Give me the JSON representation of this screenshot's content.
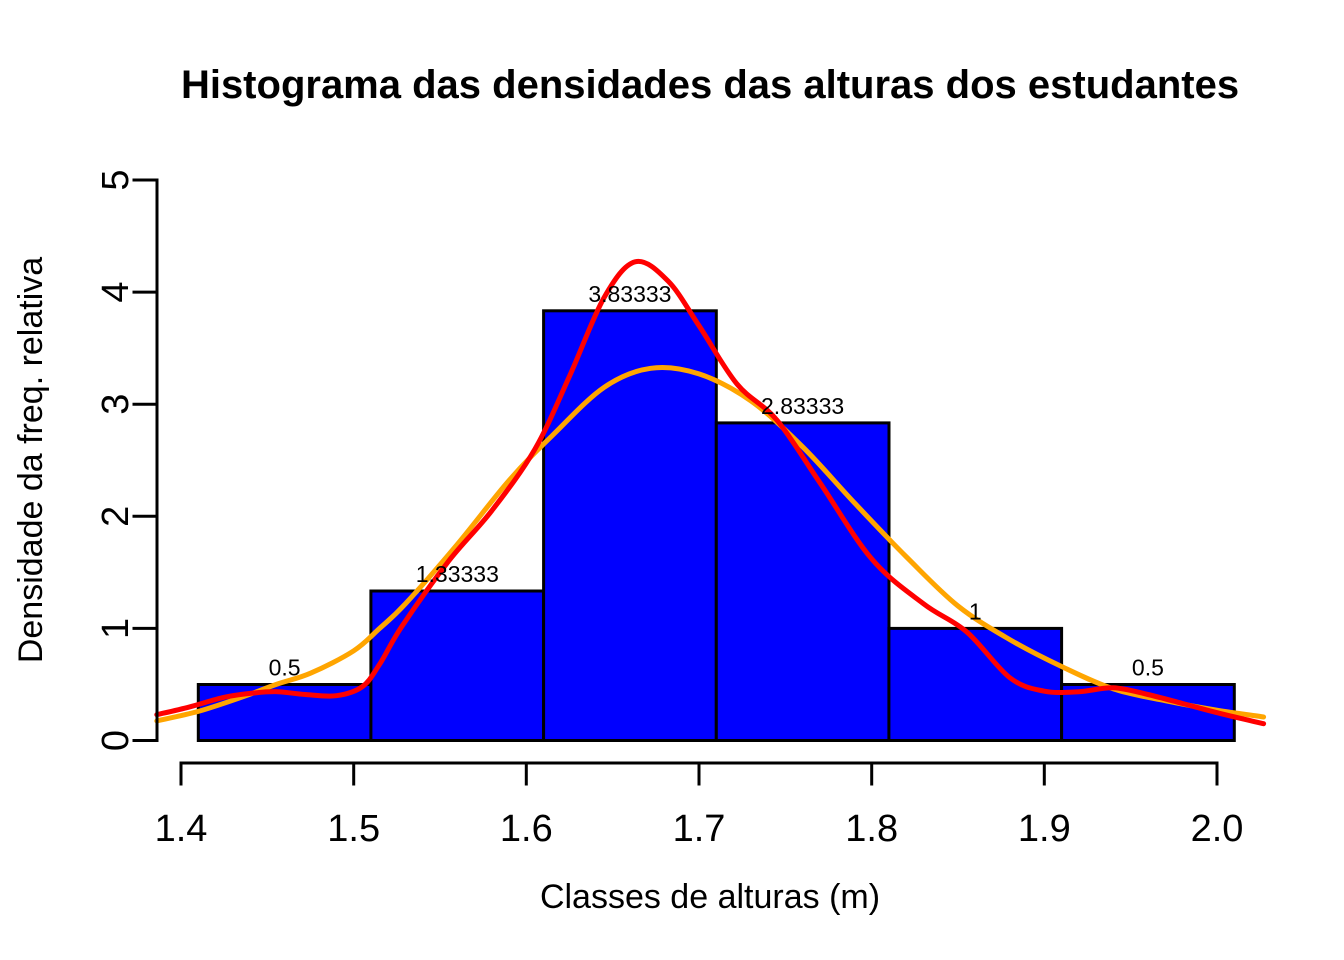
{
  "chart_data": {
    "type": "histogram",
    "title": "Histograma das densidades das alturas dos estudantes",
    "xlabel": "Classes de alturas (m)",
    "ylabel": "Densidade da freq. relativa",
    "xlim": [
      1.386,
      2.034
    ],
    "ylim": [
      0,
      5
    ],
    "grid": false,
    "legend": "none",
    "x_ticks": [
      {
        "value": 1.4,
        "label": "1.4"
      },
      {
        "value": 1.5,
        "label": "1.5"
      },
      {
        "value": 1.6,
        "label": "1.6"
      },
      {
        "value": 1.7,
        "label": "1.7"
      },
      {
        "value": 1.8,
        "label": "1.8"
      },
      {
        "value": 1.9,
        "label": "1.9"
      },
      {
        "value": 2.0,
        "label": "2.0"
      }
    ],
    "y_ticks": [
      {
        "value": 0,
        "label": "0"
      },
      {
        "value": 1,
        "label": "1"
      },
      {
        "value": 2,
        "label": "2"
      },
      {
        "value": 3,
        "label": "3"
      },
      {
        "value": 4,
        "label": "4"
      },
      {
        "value": 5,
        "label": "5"
      }
    ],
    "bar_fill": "#0000FF",
    "bar_border": "#000000",
    "axis_color": "#000000",
    "bars": [
      {
        "from": 1.41,
        "to": 1.51,
        "density": 0.5,
        "label": "0.5"
      },
      {
        "from": 1.51,
        "to": 1.61,
        "density": 1.33333,
        "label": "1.33333"
      },
      {
        "from": 1.61,
        "to": 1.71,
        "density": 3.83333,
        "label": "3.83333"
      },
      {
        "from": 1.71,
        "to": 1.81,
        "density": 2.83333,
        "label": "2.83333"
      },
      {
        "from": 1.81,
        "to": 1.91,
        "density": 1.0,
        "label": "1"
      },
      {
        "from": 1.91,
        "to": 2.01,
        "density": 0.5,
        "label": "0.5"
      }
    ],
    "curves": [
      {
        "name": "normal-curve",
        "color": "#FFA500",
        "points": [
          [
            1.386,
            0.175
          ],
          [
            1.41,
            0.26
          ],
          [
            1.435,
            0.385
          ],
          [
            1.455,
            0.5
          ],
          [
            1.475,
            0.6
          ],
          [
            1.5,
            0.8
          ],
          [
            1.515,
            1.0
          ],
          [
            1.53,
            1.22
          ],
          [
            1.56,
            1.75
          ],
          [
            1.59,
            2.32
          ],
          [
            1.615,
            2.72
          ],
          [
            1.645,
            3.15
          ],
          [
            1.672,
            3.32
          ],
          [
            1.7,
            3.27
          ],
          [
            1.73,
            3.03
          ],
          [
            1.76,
            2.62
          ],
          [
            1.79,
            2.12
          ],
          [
            1.82,
            1.64
          ],
          [
            1.85,
            1.2
          ],
          [
            1.88,
            0.9
          ],
          [
            1.91,
            0.66
          ],
          [
            1.94,
            0.46
          ],
          [
            1.97,
            0.355
          ],
          [
            2.0,
            0.27
          ],
          [
            2.027,
            0.21
          ]
        ]
      },
      {
        "name": "kernel-density-curve",
        "color": "#FF0000",
        "points": [
          [
            1.386,
            0.23
          ],
          [
            1.405,
            0.3
          ],
          [
            1.425,
            0.385
          ],
          [
            1.443,
            0.425
          ],
          [
            1.456,
            0.435
          ],
          [
            1.472,
            0.41
          ],
          [
            1.49,
            0.4
          ],
          [
            1.505,
            0.48
          ],
          [
            1.515,
            0.68
          ],
          [
            1.528,
            1.02
          ],
          [
            1.555,
            1.6
          ],
          [
            1.58,
            2.05
          ],
          [
            1.605,
            2.6
          ],
          [
            1.625,
            3.25
          ],
          [
            1.645,
            3.95
          ],
          [
            1.663,
            4.27
          ],
          [
            1.682,
            4.1
          ],
          [
            1.7,
            3.7
          ],
          [
            1.722,
            3.18
          ],
          [
            1.745,
            2.86
          ],
          [
            1.77,
            2.3
          ],
          [
            1.8,
            1.62
          ],
          [
            1.83,
            1.22
          ],
          [
            1.855,
            0.97
          ],
          [
            1.88,
            0.56
          ],
          [
            1.9,
            0.44
          ],
          [
            1.92,
            0.435
          ],
          [
            1.94,
            0.47
          ],
          [
            1.96,
            0.41
          ],
          [
            1.98,
            0.33
          ],
          [
            2.002,
            0.24
          ],
          [
            2.027,
            0.15
          ]
        ]
      }
    ]
  }
}
